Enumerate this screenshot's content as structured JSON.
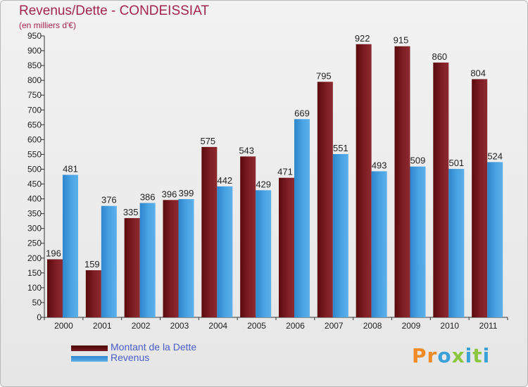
{
  "title": "Revenus/Dette - CONDEISSIAT",
  "subtitle": "(en milliers d'€)",
  "colors": {
    "title": "#a2254e",
    "dette": "#7a1c22",
    "revenus": "#4aa3e3",
    "legend_text": "#4a5cc9"
  },
  "legend": [
    {
      "label": "Montant de la Dette",
      "color": "#6b0f14"
    },
    {
      "label": "Revenus",
      "color": "#3f98dc"
    }
  ],
  "logo": {
    "text": "Proxiti",
    "letter_colors": [
      "#f08a24",
      "#f08a24",
      "#3aa0d8",
      "#8cc63f",
      "#3aa0d8",
      "#8cc63f",
      "#3aa0d8"
    ]
  },
  "chart_data": {
    "type": "bar",
    "categories": [
      "2000",
      "2001",
      "2002",
      "2003",
      "2004",
      "2005",
      "2006",
      "2007",
      "2008",
      "2009",
      "2010",
      "2011"
    ],
    "series": [
      {
        "name": "Montant de la Dette",
        "values": [
          196,
          159,
          335,
          396,
          575,
          543,
          471,
          795,
          922,
          915,
          860,
          804
        ]
      },
      {
        "name": "Revenus",
        "values": [
          481,
          376,
          386,
          399,
          442,
          429,
          669,
          551,
          493,
          509,
          501,
          524
        ]
      }
    ],
    "ylim": [
      0,
      950
    ],
    "yticks": [
      0,
      50,
      100,
      150,
      200,
      250,
      300,
      350,
      400,
      450,
      500,
      550,
      600,
      650,
      700,
      750,
      800,
      850,
      900,
      950
    ],
    "grid": false,
    "legend_position": "bottom-left"
  }
}
